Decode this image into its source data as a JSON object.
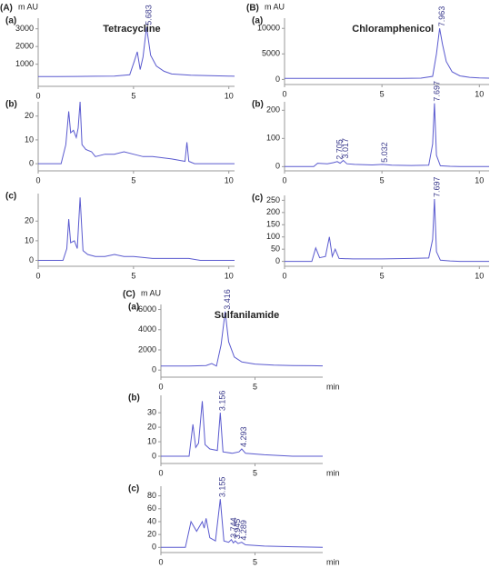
{
  "chart_data": [
    {
      "type": "line",
      "figure_label": "(A)",
      "panel_label": "(a)",
      "title": "Tetracycline",
      "y_label": "m AU",
      "xlim": [
        0,
        10.3
      ],
      "xticks": [
        0,
        5,
        10
      ],
      "ylim": [
        -250,
        3600
      ],
      "yticks": [
        1000,
        2000,
        3000
      ],
      "series": [
        {
          "color": "#5a5acf",
          "x": [
            0,
            1,
            2,
            3,
            4,
            4.8,
            5.05,
            5.2,
            5.35,
            5.5,
            5.683,
            5.9,
            6.2,
            6.6,
            7,
            8,
            9,
            10,
            10.3
          ],
          "values": [
            300,
            300,
            310,
            320,
            330,
            400,
            1200,
            1700,
            700,
            1400,
            3100,
            1500,
            900,
            600,
            450,
            380,
            350,
            330,
            320
          ]
        }
      ],
      "annotations": [
        {
          "text": "5.683",
          "x": 5.683,
          "y": 3100
        }
      ]
    },
    {
      "type": "line",
      "panel_label": "(b)",
      "xlim": [
        0,
        10.3
      ],
      "xticks": [
        0,
        5,
        10
      ],
      "ylim": [
        -3,
        26
      ],
      "yticks": [
        0,
        10,
        20
      ],
      "series": [
        {
          "color": "#5a5acf",
          "x": [
            0,
            1.2,
            1.45,
            1.6,
            1.7,
            1.85,
            2.0,
            2.1,
            2.2,
            2.3,
            2.5,
            2.8,
            3,
            3.5,
            4,
            4.5,
            5,
            5.5,
            6,
            7,
            7.7,
            7.8,
            7.9,
            8.2,
            9,
            10,
            10.3
          ],
          "values": [
            0,
            0,
            8,
            22,
            13,
            14,
            11,
            15,
            26,
            8,
            6,
            5,
            3,
            4,
            4,
            5,
            4,
            3,
            3,
            2,
            1,
            9,
            1,
            0,
            0,
            0,
            0
          ]
        }
      ]
    },
    {
      "type": "line",
      "panel_label": "(c)",
      "xlim": [
        0,
        10.3
      ],
      "xticks": [
        0,
        5,
        10
      ],
      "ylim": [
        -3,
        34
      ],
      "yticks": [
        0,
        10,
        20
      ],
      "series": [
        {
          "color": "#5a5acf",
          "x": [
            0,
            1.3,
            1.5,
            1.6,
            1.7,
            1.9,
            2.05,
            2.2,
            2.35,
            2.6,
            3,
            3.5,
            4,
            4.5,
            5,
            6,
            7,
            7.9,
            8.5,
            9,
            10,
            10.3
          ],
          "values": [
            0,
            0,
            6,
            21,
            9,
            10,
            6,
            32,
            5,
            3,
            2,
            2,
            3,
            2,
            2,
            1,
            1,
            1,
            0,
            0,
            0,
            0
          ]
        }
      ]
    },
    {
      "type": "line",
      "figure_label": "(B)",
      "panel_label": "(a)",
      "title": "Chloramphenicol",
      "y_label": "m AU",
      "xlim": [
        0,
        10.5
      ],
      "xticks": [
        0,
        5,
        10
      ],
      "ylim": [
        -1000,
        12000
      ],
      "yticks": [
        0,
        5000,
        10000
      ],
      "series": [
        {
          "color": "#5a5acf",
          "x": [
            0,
            2,
            4,
            6,
            7,
            7.6,
            7.8,
            7.963,
            8.1,
            8.3,
            8.6,
            9,
            9.5,
            10,
            10.5
          ],
          "values": [
            200,
            200,
            200,
            200,
            250,
            600,
            5000,
            10000,
            7000,
            3500,
            1500,
            700,
            400,
            300,
            250
          ]
        }
      ],
      "annotations": [
        {
          "text": "7.963",
          "x": 7.963,
          "y": 10000
        }
      ]
    },
    {
      "type": "line",
      "panel_label": "(b)",
      "xlim": [
        0,
        10.5
      ],
      "xticks": [
        0,
        5,
        10
      ],
      "ylim": [
        -15,
        230
      ],
      "yticks": [
        0,
        100,
        200
      ],
      "series": [
        {
          "color": "#5a5acf",
          "x": [
            0,
            1.5,
            1.7,
            2.2,
            2.5,
            2.705,
            2.85,
            3.017,
            3.2,
            3.6,
            4.5,
            5.032,
            5.5,
            6.5,
            7.4,
            7.6,
            7.697,
            7.8,
            8,
            8.5,
            9,
            10.5
          ],
          "values": [
            0,
            0,
            12,
            10,
            14,
            18,
            12,
            22,
            10,
            8,
            6,
            8,
            5,
            4,
            5,
            80,
            225,
            40,
            3,
            1,
            0,
            0
          ]
        }
      ],
      "annotations": [
        {
          "text": "2.705",
          "x": 2.705,
          "y": 18
        },
        {
          "text": "3.017",
          "x": 3.017,
          "y": 22
        },
        {
          "text": "5.032",
          "x": 5.032,
          "y": 8
        },
        {
          "text": "7.697",
          "x": 7.697,
          "y": 225
        }
      ]
    },
    {
      "type": "line",
      "panel_label": "(c)",
      "xlim": [
        0,
        10.5
      ],
      "xticks": [
        0,
        5,
        10
      ],
      "ylim": [
        -20,
        270
      ],
      "yticks": [
        0,
        50,
        100,
        150,
        200,
        250
      ],
      "series": [
        {
          "color": "#5a5acf",
          "x": [
            0,
            1.4,
            1.6,
            1.8,
            2.1,
            2.3,
            2.45,
            2.6,
            2.8,
            3.5,
            5,
            6.5,
            7.4,
            7.6,
            7.697,
            7.8,
            8,
            8.5,
            9,
            10.5
          ],
          "values": [
            0,
            0,
            55,
            15,
            20,
            100,
            20,
            50,
            12,
            10,
            10,
            12,
            14,
            90,
            255,
            40,
            5,
            2,
            0,
            0
          ]
        }
      ],
      "annotations": [
        {
          "text": "7.697",
          "x": 7.697,
          "y": 255
        }
      ]
    },
    {
      "type": "line",
      "figure_label": "(C)",
      "panel_label": "(a)",
      "title": "Sulfanilamide",
      "y_label": "m AU",
      "x_label": "min",
      "xlim": [
        0,
        8.6
      ],
      "xticks": [
        0,
        5
      ],
      "ylim": [
        -700,
        6500
      ],
      "yticks": [
        0,
        2000,
        4000,
        6000
      ],
      "series": [
        {
          "color": "#5a5acf",
          "x": [
            0,
            1.5,
            2.4,
            2.7,
            2.95,
            3.2,
            3.416,
            3.6,
            3.9,
            4.3,
            5,
            6,
            7,
            8,
            8.6
          ],
          "values": [
            400,
            400,
            450,
            650,
            400,
            2500,
            5800,
            2800,
            1300,
            800,
            600,
            500,
            450,
            430,
            420
          ]
        }
      ],
      "annotations": [
        {
          "text": "3.416",
          "x": 3.416,
          "y": 5800
        }
      ]
    },
    {
      "type": "line",
      "panel_label": "(b)",
      "x_label": "min",
      "xlim": [
        0,
        8.6
      ],
      "xticks": [
        0,
        5
      ],
      "ylim": [
        -5,
        42
      ],
      "yticks": [
        0,
        10,
        20,
        30
      ],
      "series": [
        {
          "color": "#5a5acf",
          "x": [
            0,
            1.5,
            1.7,
            1.85,
            2.0,
            2.2,
            2.35,
            2.6,
            3.0,
            3.156,
            3.3,
            3.8,
            4.15,
            4.293,
            4.5,
            5.5,
            7,
            8.6
          ],
          "values": [
            0,
            0,
            22,
            6,
            9,
            38,
            8,
            5,
            4,
            30,
            3,
            2,
            3,
            5,
            2,
            1,
            0,
            0
          ]
        }
      ],
      "annotations": [
        {
          "text": "3.156",
          "x": 3.156,
          "y": 30
        },
        {
          "text": "4.293",
          "x": 4.293,
          "y": 5
        }
      ]
    },
    {
      "type": "line",
      "panel_label": "(c)",
      "x_label": "min",
      "xlim": [
        0,
        8.6
      ],
      "xticks": [
        0,
        5
      ],
      "ylim": [
        -8,
        95
      ],
      "yticks": [
        0,
        20,
        40,
        60,
        80
      ],
      "series": [
        {
          "color": "#5a5acf",
          "x": [
            0,
            1.3,
            1.6,
            1.9,
            2.2,
            2.3,
            2.4,
            2.6,
            2.9,
            3.155,
            3.35,
            3.6,
            3.744,
            3.85,
            3.945,
            4.1,
            4.289,
            4.5,
            5.5,
            7,
            8.6
          ],
          "values": [
            0,
            0,
            40,
            25,
            40,
            30,
            45,
            15,
            10,
            75,
            10,
            8,
            12,
            7,
            10,
            6,
            8,
            4,
            2,
            1,
            0
          ]
        }
      ],
      "annotations": [
        {
          "text": "3.155",
          "x": 3.155,
          "y": 75
        },
        {
          "text": "3.744",
          "x": 3.744,
          "y": 12
        },
        {
          "text": "3.945",
          "x": 3.945,
          "y": 10
        },
        {
          "text": "4.289",
          "x": 4.289,
          "y": 8
        }
      ]
    }
  ]
}
